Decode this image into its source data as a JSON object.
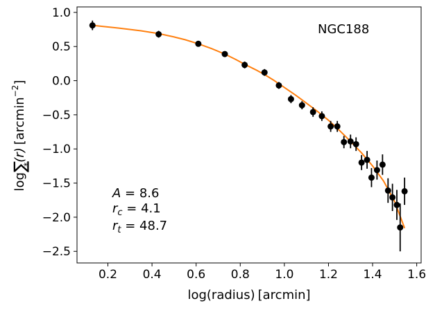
{
  "chart_data": {
    "type": "scatter",
    "title": "NGC188",
    "xlabel_main": "log(radius)",
    "xlabel_unit": "[arcmin]",
    "ylabel_log": "log",
    "ylabel_sigma": "∑",
    "ylabel_sub": "*",
    "ylabel_arg": "(r)",
    "ylabel_unit_open": "[arcmin",
    "ylabel_unit_exp": "−2",
    "ylabel_unit_close": "]",
    "xlim": [
      0.06,
      1.62
    ],
    "ylim": [
      -2.67,
      1.08
    ],
    "x_ticks": [
      0.2,
      0.4,
      0.6,
      0.8,
      1.0,
      1.2,
      1.4,
      1.6
    ],
    "x_tick_labels": [
      "0.2",
      "0.4",
      "0.6",
      "0.8",
      "1.0",
      "1.2",
      "1.4",
      "1.6"
    ],
    "y_ticks": [
      1.0,
      0.5,
      0.0,
      -0.5,
      -1.0,
      -1.5,
      -2.0,
      -2.5
    ],
    "y_tick_labels": [
      "1.0",
      "0.5",
      "0.0",
      "−0.5",
      "−1.0",
      "−1.5",
      "−2.0",
      "−2.5"
    ],
    "annotations": [
      {
        "sym": "A",
        "sub": "",
        "rest": " = 8.6"
      },
      {
        "sym": "r",
        "sub": "c",
        "rest": " = 4.1"
      },
      {
        "sym": "r",
        "sub": "t",
        "rest": " = 48.7"
      }
    ],
    "points": [
      {
        "x": 0.13,
        "y": 0.81,
        "err": 0.07
      },
      {
        "x": 0.43,
        "y": 0.68,
        "err": 0.05
      },
      {
        "x": 0.61,
        "y": 0.54,
        "err": 0.04
      },
      {
        "x": 0.73,
        "y": 0.39,
        "err": 0.04
      },
      {
        "x": 0.82,
        "y": 0.23,
        "err": 0.05
      },
      {
        "x": 0.91,
        "y": 0.12,
        "err": 0.05
      },
      {
        "x": 0.975,
        "y": -0.07,
        "err": 0.05
      },
      {
        "x": 1.03,
        "y": -0.27,
        "err": 0.06
      },
      {
        "x": 1.08,
        "y": -0.36,
        "err": 0.06
      },
      {
        "x": 1.13,
        "y": -0.46,
        "err": 0.07
      },
      {
        "x": 1.17,
        "y": -0.52,
        "err": 0.07
      },
      {
        "x": 1.21,
        "y": -0.67,
        "err": 0.08
      },
      {
        "x": 1.24,
        "y": -0.67,
        "err": 0.08
      },
      {
        "x": 1.27,
        "y": -0.9,
        "err": 0.09
      },
      {
        "x": 1.3,
        "y": -0.89,
        "err": 0.1
      },
      {
        "x": 1.325,
        "y": -0.93,
        "err": 0.1
      },
      {
        "x": 1.35,
        "y": -1.2,
        "err": 0.11
      },
      {
        "x": 1.375,
        "y": -1.16,
        "err": 0.13
      },
      {
        "x": 1.395,
        "y": -1.42,
        "err": 0.14
      },
      {
        "x": 1.42,
        "y": -1.31,
        "err": 0.14
      },
      {
        "x": 1.445,
        "y": -1.23,
        "err": 0.15
      },
      {
        "x": 1.47,
        "y": -1.61,
        "err": 0.18
      },
      {
        "x": 1.49,
        "y": -1.71,
        "err": 0.2
      },
      {
        "x": 1.51,
        "y": -1.82,
        "err": 0.22
      },
      {
        "x": 1.525,
        "y": -2.15,
        "err": 0.35
      },
      {
        "x": 1.545,
        "y": -1.62,
        "err": 0.2
      }
    ],
    "fit_color": "#ff7f0e",
    "point_color": "#000000",
    "fit": {
      "x": [
        0.13,
        0.25,
        0.35,
        0.43,
        0.5,
        0.55,
        0.61,
        0.67,
        0.73,
        0.78,
        0.82,
        0.87,
        0.91,
        0.95,
        1.0,
        1.05,
        1.1,
        1.15,
        1.2,
        1.25,
        1.3,
        1.35,
        1.4,
        1.45,
        1.5,
        1.545
      ],
      "y": [
        0.81,
        0.77,
        0.73,
        0.69,
        0.64,
        0.6,
        0.54,
        0.47,
        0.39,
        0.31,
        0.24,
        0.16,
        0.09,
        0.01,
        -0.1,
        -0.21,
        -0.33,
        -0.45,
        -0.58,
        -0.73,
        -0.89,
        -1.06,
        -1.25,
        -1.47,
        -1.77,
        -2.16
      ]
    }
  }
}
